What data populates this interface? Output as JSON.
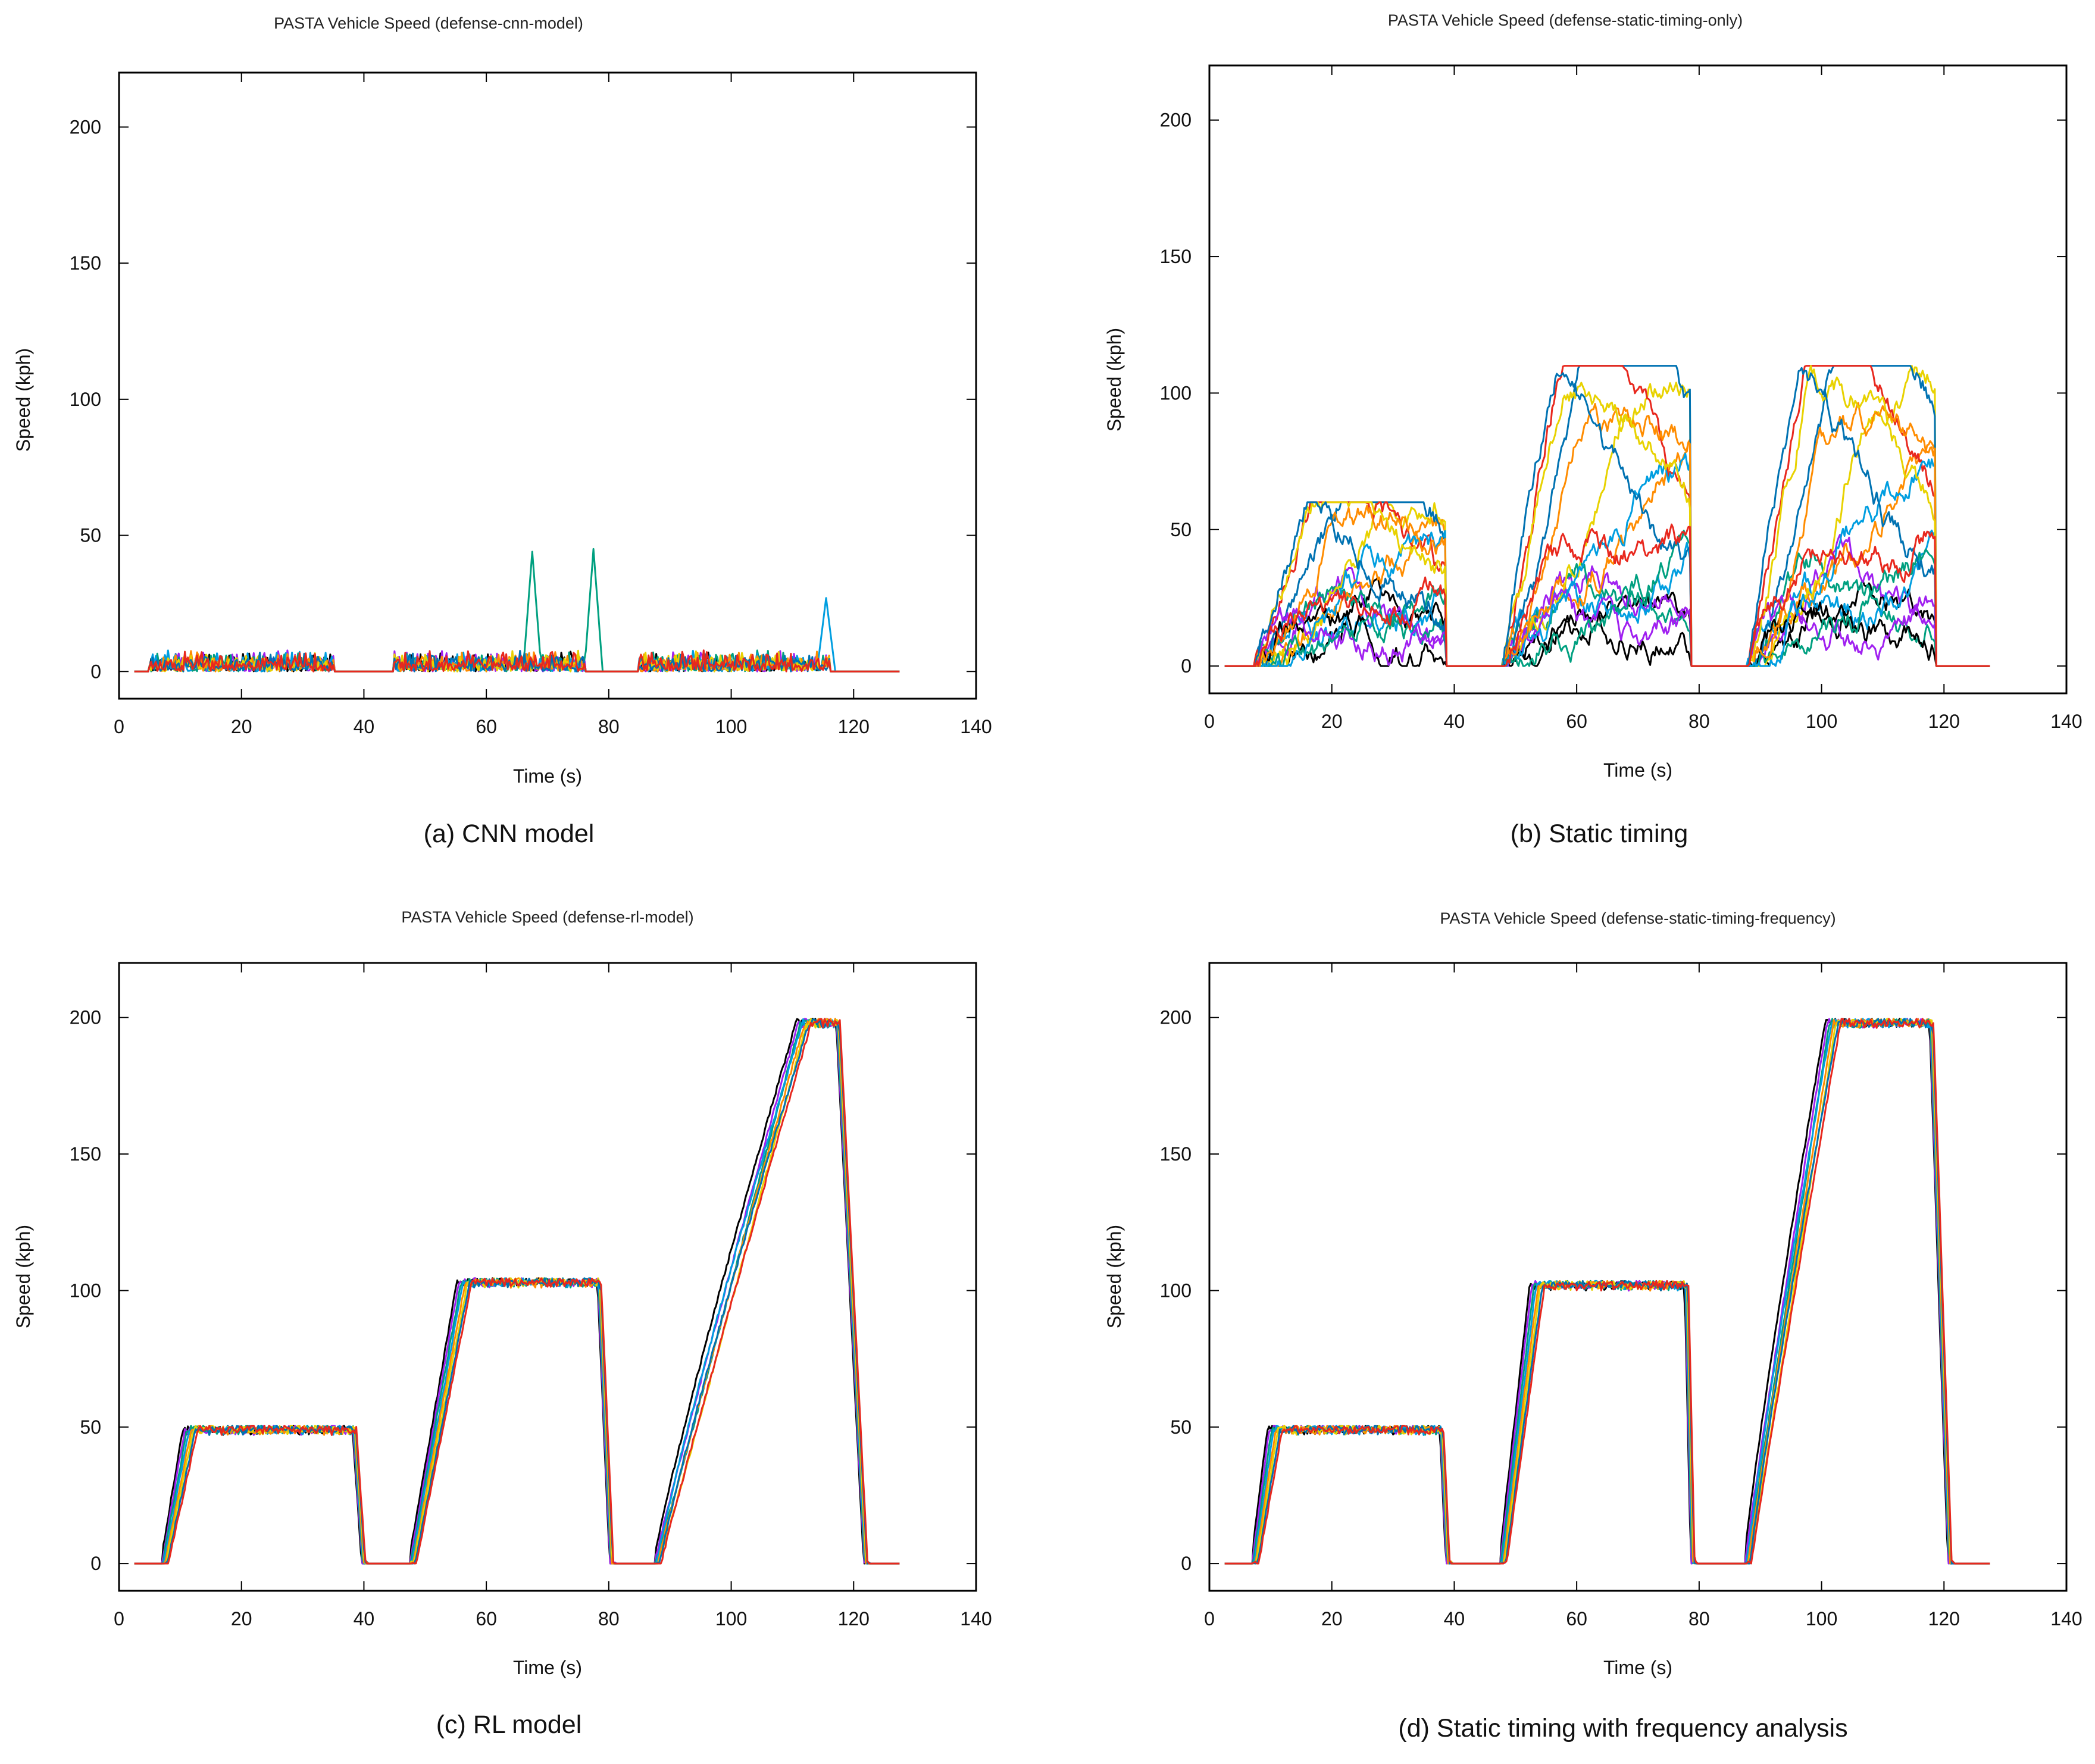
{
  "colors": {
    "series": [
      "#000000",
      "#a020f0",
      "#00a080",
      "#009ee0",
      "#ff8c00",
      "#e8d200",
      "#0072b2",
      "#e8281e"
    ]
  },
  "chart_data": [
    {
      "type": "line",
      "title": "PASTA Vehicle Speed (defense-cnn-model)",
      "caption": "(a) CNN model",
      "xlabel": "Time (s)",
      "ylabel": "Speed (kph)",
      "xlim": [
        0,
        140
      ],
      "ylim": [
        -10,
        220
      ],
      "xticks": [
        0,
        20,
        40,
        60,
        80,
        100,
        120,
        140
      ],
      "yticks": [
        0,
        50,
        100,
        150,
        200
      ],
      "x_range_of_data": [
        2.5,
        127.5
      ],
      "profile": "noise",
      "segments": [
        [
          5,
          35
        ],
        [
          45,
          76
        ],
        [
          85,
          116
        ]
      ],
      "noise_max_kph": 8,
      "spikes": [
        {
          "series": 2,
          "t": 67.5,
          "peak": 44
        },
        {
          "series": 2,
          "t": 77.5,
          "peak": 45
        },
        {
          "series": 3,
          "t": 115.5,
          "peak": 27
        }
      ],
      "series_count": 8
    },
    {
      "type": "line",
      "title": "PASTA Vehicle Speed (defense-static-timing-only)",
      "caption": "(b) Static timing",
      "xlabel": "Time (s)",
      "ylabel": "Speed (kph)",
      "xlim": [
        0,
        140
      ],
      "ylim": [
        -10,
        220
      ],
      "xticks": [
        0,
        20,
        40,
        60,
        80,
        100,
        120,
        140
      ],
      "yticks": [
        0,
        50,
        100,
        150,
        200
      ],
      "x_range_of_data": [
        2.5,
        127.5
      ],
      "profile": "erratic",
      "segments": [
        {
          "start": 7.5,
          "end": 38.5,
          "range": [
            20,
            60
          ]
        },
        {
          "start": 48,
          "end": 78.5,
          "range": [
            20,
            110
          ]
        },
        {
          "start": 88,
          "end": 118.5,
          "range": [
            20,
            110
          ]
        }
      ],
      "series_count": 16
    },
    {
      "type": "line",
      "title": "PASTA Vehicle Speed (defense-rl-model)",
      "caption": "(c) RL model",
      "xlabel": "Time (s)",
      "ylabel": "Speed (kph)",
      "xlim": [
        0,
        140
      ],
      "ylim": [
        -10,
        220
      ],
      "xticks": [
        0,
        20,
        40,
        60,
        80,
        100,
        120,
        140
      ],
      "yticks": [
        0,
        50,
        100,
        150,
        200
      ],
      "x_range_of_data": [
        2.5,
        127.5
      ],
      "profile": "tracking",
      "segments": [
        {
          "start": 7.5,
          "reach": 12,
          "target": 49,
          "end": 38.5,
          "drop": 1.5
        },
        {
          "start": 48,
          "reach": 57,
          "target": 103,
          "end": 78.5,
          "drop": 2
        },
        {
          "start": 88,
          "reach": 112,
          "target": 198,
          "end": 117.5,
          "drop": 4.5
        }
      ],
      "series_count": 8
    },
    {
      "type": "line",
      "title": "PASTA Vehicle Speed (defense-static-timing-frequency)",
      "caption": "(d) Static timing with frequency analysis",
      "xlabel": "Time (s)",
      "ylabel": "Speed (kph)",
      "xlim": [
        0,
        140
      ],
      "ylim": [
        -10,
        220
      ],
      "xticks": [
        0,
        20,
        40,
        60,
        80,
        100,
        120,
        140
      ],
      "yticks": [
        0,
        50,
        100,
        150,
        200
      ],
      "x_range_of_data": [
        2.5,
        127.5
      ],
      "profile": "tracking",
      "segments": [
        {
          "start": 7.5,
          "reach": 11,
          "target": 49,
          "end": 38,
          "drop": 1
        },
        {
          "start": 48,
          "reach": 54,
          "target": 102,
          "end": 78,
          "drop": 1
        },
        {
          "start": 88,
          "reach": 102,
          "target": 198,
          "end": 118,
          "drop": 3
        }
      ],
      "series_count": 8
    }
  ]
}
